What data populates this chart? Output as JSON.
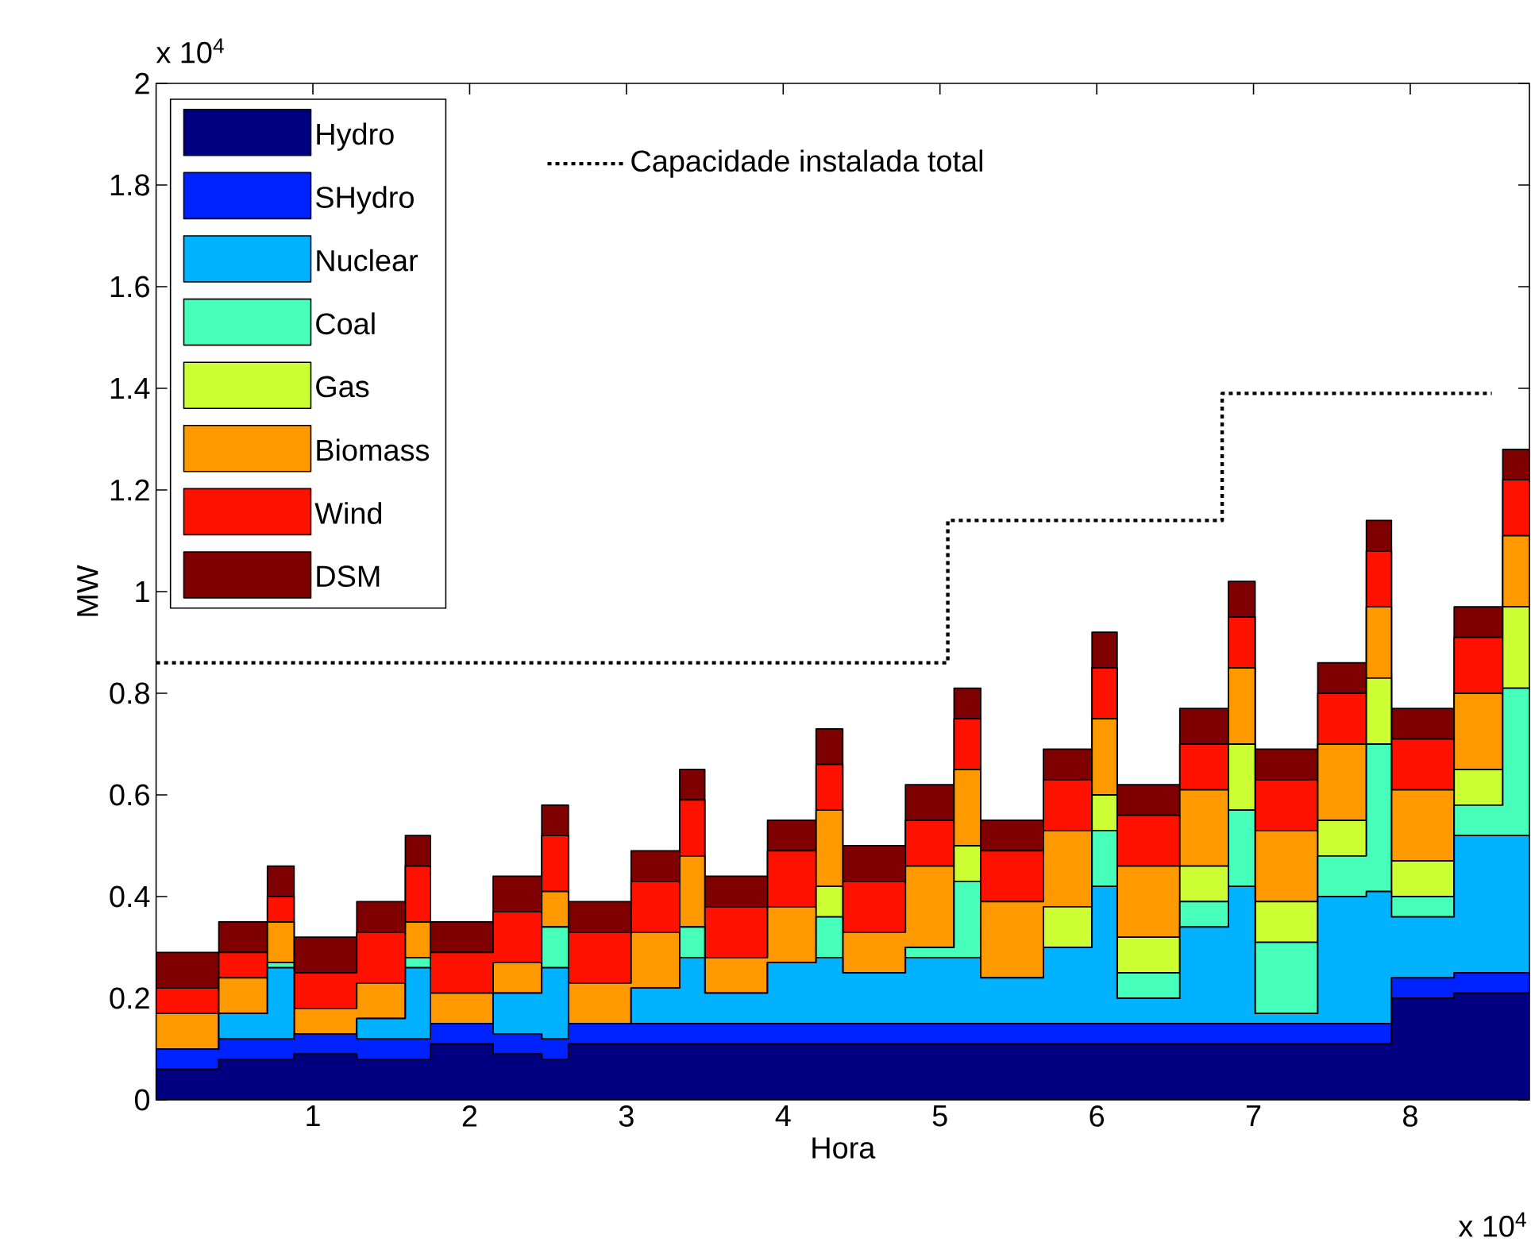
{
  "chart_data": {
    "type": "area",
    "stacked": true,
    "xlabel": "Hora",
    "ylabel": "MW",
    "annotations": [
      "x 10$^{4}$",
      "x 10$^{4}$"
    ],
    "x": [
      0,
      0.4,
      0.71,
      0.88,
      1.28,
      1.59,
      1.75,
      2.15,
      2.46,
      2.63,
      3.03,
      3.34,
      3.5,
      3.9,
      4.21,
      4.38,
      4.78,
      5.09,
      5.26,
      5.66,
      5.97,
      6.13,
      6.53,
      6.84,
      7.01,
      7.41,
      7.72,
      7.88,
      8.28,
      8.59,
      8.76
    ],
    "xlim": [
      0,
      8.76
    ],
    "ylim": [
      0,
      2
    ],
    "xticks": [
      1,
      2,
      3,
      4,
      5,
      6,
      7,
      8
    ],
    "yticks": [
      0,
      0.2,
      0.4,
      0.6,
      0.8,
      1,
      1.2,
      1.4,
      1.6,
      1.8,
      2
    ],
    "legend": "top left",
    "series": [
      {
        "name": "Hydro",
        "color": "#000080",
        "values": [
          0.06,
          0.08,
          0.08,
          0.09,
          0.08,
          0.08,
          0.11,
          0.09,
          0.08,
          0.11,
          0.11,
          0.11,
          0.11,
          0.11,
          0.11,
          0.11,
          0.11,
          0.11,
          0.11,
          0.11,
          0.11,
          0.11,
          0.11,
          0.11,
          0.11,
          0.11,
          0.11,
          0.2,
          0.21,
          0.21,
          0.21
        ]
      },
      {
        "name": "SHydro",
        "color": "#0022ff",
        "values": [
          0.04,
          0.04,
          0.04,
          0.04,
          0.04,
          0.04,
          0.04,
          0.04,
          0.04,
          0.04,
          0.04,
          0.04,
          0.04,
          0.04,
          0.04,
          0.04,
          0.04,
          0.04,
          0.04,
          0.04,
          0.04,
          0.04,
          0.04,
          0.04,
          0.04,
          0.04,
          0.04,
          0.04,
          0.04,
          0.04,
          0.04
        ]
      },
      {
        "name": "Nuclear",
        "color": "#00b2ff",
        "values": [
          0,
          0.05,
          0.14,
          0,
          0.04,
          0.14,
          0,
          0.08,
          0.14,
          0,
          0.07,
          0.13,
          0.06,
          0.12,
          0.13,
          0.1,
          0.13,
          0.13,
          0.09,
          0.15,
          0.27,
          0.05,
          0.19,
          0.27,
          0.02,
          0.25,
          0.26,
          0.12,
          0.27,
          0.27,
          0.27
        ]
      },
      {
        "name": "Coal",
        "color": "#45ffbb",
        "values": [
          0,
          0,
          0.01,
          0,
          0,
          0.02,
          0,
          0,
          0.08,
          0,
          0,
          0.06,
          0,
          0,
          0.08,
          0,
          0.02,
          0.15,
          0,
          0,
          0.11,
          0.05,
          0.05,
          0.15,
          0.14,
          0.08,
          0.29,
          0.04,
          0.06,
          0.29,
          0.29
        ]
      },
      {
        "name": "Gas",
        "color": "#ccff33",
        "values": [
          0,
          0,
          0,
          0,
          0,
          0,
          0,
          0,
          0,
          0,
          0,
          0,
          0,
          0,
          0.06,
          0,
          0,
          0.07,
          0,
          0.08,
          0.07,
          0.07,
          0.07,
          0.13,
          0.08,
          0.07,
          0.13,
          0.07,
          0.07,
          0.16,
          0.16
        ]
      },
      {
        "name": "Biomass",
        "color": "#ff9900",
        "values": [
          0.07,
          0.07,
          0.08,
          0.05,
          0.07,
          0.07,
          0.06,
          0.06,
          0.07,
          0.08,
          0.11,
          0.14,
          0.07,
          0.11,
          0.15,
          0.08,
          0.16,
          0.15,
          0.15,
          0.15,
          0.15,
          0.14,
          0.15,
          0.15,
          0.14,
          0.15,
          0.14,
          0.14,
          0.15,
          0.14,
          0.14
        ]
      },
      {
        "name": "Wind",
        "color": "#ff1100",
        "values": [
          0.05,
          0.05,
          0.05,
          0.07,
          0.1,
          0.11,
          0.08,
          0.1,
          0.11,
          0.1,
          0.1,
          0.11,
          0.1,
          0.11,
          0.09,
          0.1,
          0.09,
          0.1,
          0.1,
          0.1,
          0.1,
          0.1,
          0.09,
          0.1,
          0.1,
          0.1,
          0.11,
          0.1,
          0.11,
          0.11,
          0.11
        ]
      },
      {
        "name": "DSM",
        "color": "#7f0000",
        "values": [
          0.07,
          0.06,
          0.06,
          0.07,
          0.06,
          0.06,
          0.06,
          0.07,
          0.06,
          0.06,
          0.06,
          0.06,
          0.06,
          0.06,
          0.07,
          0.07,
          0.07,
          0.06,
          0.06,
          0.06,
          0.07,
          0.06,
          0.07,
          0.07,
          0.06,
          0.06,
          0.06,
          0.06,
          0.06,
          0.06,
          0.06
        ]
      },
      {
        "name": "Capacidade  instalada total",
        "type": "step",
        "color": "#000000",
        "line_style": "dotted",
        "x": [
          0,
          5.05,
          6.8,
          8.52
        ],
        "values": [
          0.86,
          1.14,
          1.39,
          1.39
        ]
      }
    ]
  }
}
